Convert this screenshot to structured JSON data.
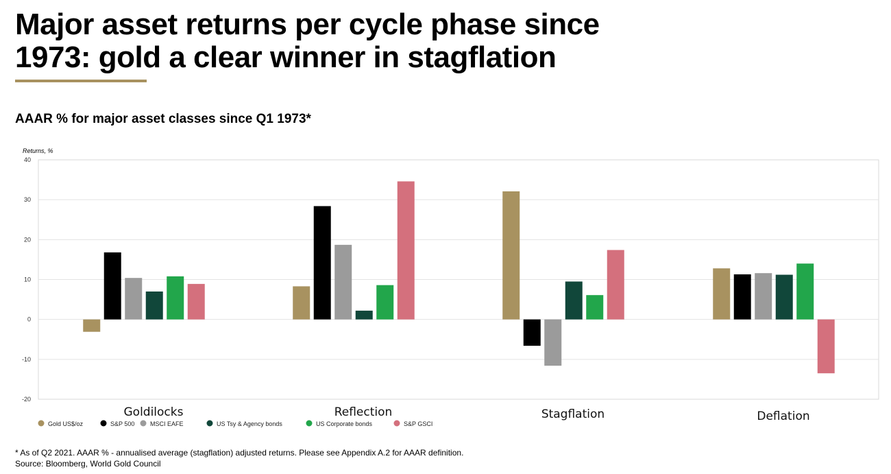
{
  "page": {
    "title": "Major asset returns per cycle phase since\n1973: gold a clear winner in stagflation",
    "accent_color": "#a89260",
    "chart_heading": "AAAR % for major asset classes since Q1 1973*",
    "footnote": "* As of Q2 2021. AAAR % - annualised average (stagflation) adjusted returns. Please see Appendix A.2 for AAAR definition.",
    "source": "Source: Bloomberg, World Gold Council"
  },
  "chart_data": {
    "type": "bar",
    "ylabel": "Returns, %",
    "xlabel": "",
    "ylim": [
      -20,
      40
    ],
    "yticks": [
      40,
      30,
      20,
      10,
      0,
      -10,
      -20
    ],
    "grid": true,
    "legend_position": "bottom-left",
    "categories": [
      "Goldilocks",
      "Reflection",
      "Stagflation",
      "Deflation"
    ],
    "series": [
      {
        "name": "Gold US$/oz",
        "color": "#a89260",
        "values": [
          -3.1,
          8.3,
          32.1,
          12.8
        ]
      },
      {
        "name": "S&P 500",
        "color": "#000000",
        "values": [
          16.8,
          28.4,
          -6.6,
          11.3
        ]
      },
      {
        "name": "MSCI EAFE",
        "color": "#9b9b9b",
        "values": [
          10.4,
          18.7,
          -11.6,
          11.6
        ]
      },
      {
        "name": "US Tsy & Agency bonds",
        "color": "#11473a",
        "values": [
          7.0,
          2.2,
          9.5,
          11.2
        ]
      },
      {
        "name": "US Corporate bonds",
        "color": "#22a64b",
        "values": [
          10.8,
          8.6,
          6.1,
          14.0
        ]
      },
      {
        "name": "S&P GSCI",
        "color": "#d4707d",
        "values": [
          8.9,
          34.6,
          17.4,
          -13.5
        ]
      }
    ]
  }
}
